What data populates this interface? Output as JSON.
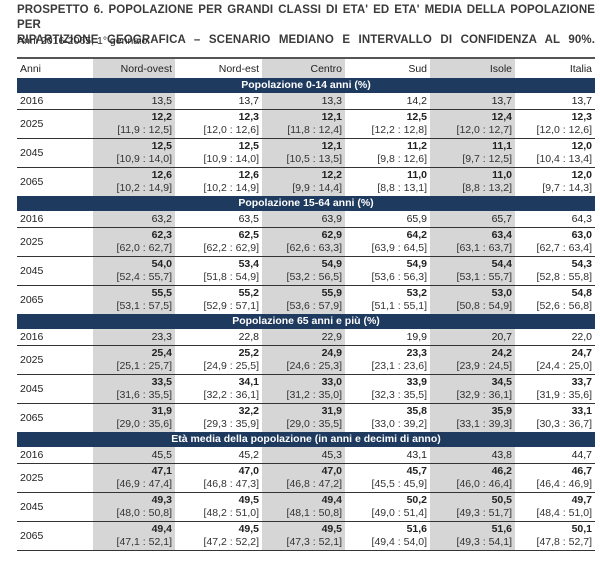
{
  "document": {
    "title_line1": "PROSPETTO 6. POPOLAZIONE PER GRANDI CLASSI DI ETA' ED ETA' MEDIA DELLA POPOLAZIONE PER",
    "title_line2": "RIPARTIZIONE GEOGRAFICA – SCENARIO MEDIANO E INTERVALLO DI CONFIDENZA AL 90%.",
    "subtitle": "Anni 2016-2065, 1° gennaio."
  },
  "table": {
    "headers": [
      "Anni",
      "Nord-ovest",
      "Nord-est",
      "Centro",
      "Sud",
      "Isole",
      "Italia"
    ],
    "sections": [
      {
        "title": "Popolazione 0-14 anni (%)",
        "rows": [
          {
            "year": "2016",
            "values": [
              "13,5",
              "13,7",
              "13,3",
              "14,2",
              "13,7",
              "13,7"
            ]
          },
          {
            "year": "2025",
            "values": [
              "12,2",
              "12,3",
              "12,1",
              "12,5",
              "12,4",
              "12,3"
            ],
            "ci": [
              "[11,9 : 12,5]",
              "[12,0 : 12,6]",
              "[11,8 : 12,4]",
              "[12,2 : 12,8]",
              "[12,0 : 12,7]",
              "[12,0 : 12,6]"
            ]
          },
          {
            "year": "2045",
            "values": [
              "12,5",
              "12,5",
              "12,1",
              "11,2",
              "11,1",
              "12,0"
            ],
            "ci": [
              "[10,9 : 14,0]",
              "[10,9 : 14,0]",
              "[10,5 : 13,5]",
              "[9,8 : 12,6]",
              "[9,7 : 12,5]",
              "[10,4 : 13,4]"
            ]
          },
          {
            "year": "2065",
            "values": [
              "12,6",
              "12,6",
              "12,2",
              "11,0",
              "11,0",
              "12,0"
            ],
            "ci": [
              "[10,2 : 14,9]",
              "[10,2 : 14,9]",
              "[9,9 : 14,4]",
              "[8,8 : 13,1]",
              "[8,8 : 13,2]",
              "[9,7 : 14,3]"
            ]
          }
        ]
      },
      {
        "title": "Popolazione 15-64 anni (%)",
        "rows": [
          {
            "year": "2016",
            "values": [
              "63,2",
              "63,5",
              "63,9",
              "65,9",
              "65,7",
              "64,3"
            ]
          },
          {
            "year": "2025",
            "values": [
              "62,3",
              "62,5",
              "62,9",
              "64,2",
              "63,4",
              "63,0"
            ],
            "ci": [
              "[62,0 : 62,7]",
              "[62,2 : 62,9]",
              "[62,6 : 63,3]",
              "[63,9 : 64,5]",
              "[63,1 : 63,7]",
              "[62,7 : 63,4]"
            ]
          },
          {
            "year": "2045",
            "values": [
              "54,0",
              "53,4",
              "54,9",
              "54,9",
              "54,4",
              "54,3"
            ],
            "ci": [
              "[52,4 : 55,7]",
              "[51,8 : 54,9]",
              "[53,2 : 56,5]",
              "[53,6 : 56,3]",
              "[53,1 : 55,7]",
              "[52,8 : 55,8]"
            ]
          },
          {
            "year": "2065",
            "values": [
              "55,5",
              "55,2",
              "55,9",
              "53,2",
              "53,0",
              "54,8"
            ],
            "ci": [
              "[53,1 : 57,5]",
              "[52,9 : 57,1]",
              "[53,6 : 57,9]",
              "[51,1 : 55,1]",
              "[50,8 : 54,9]",
              "[52,6 : 56,8]"
            ]
          }
        ]
      },
      {
        "title": "Popolazione 65 anni e più (%)",
        "rows": [
          {
            "year": "2016",
            "values": [
              "23,3",
              "22,8",
              "22,9",
              "19,9",
              "20,7",
              "22,0"
            ]
          },
          {
            "year": "2025",
            "values": [
              "25,4",
              "25,2",
              "24,9",
              "23,3",
              "24,2",
              "24,7"
            ],
            "ci": [
              "[25,1 : 25,7]",
              "[24,9 : 25,5]",
              "[24,6 : 25,3]",
              "[23,1 : 23,6]",
              "[23,9 : 24,5]",
              "[24,4 : 25,0]"
            ]
          },
          {
            "year": "2045",
            "values": [
              "33,5",
              "34,1",
              "33,0",
              "33,9",
              "34,5",
              "33,7"
            ],
            "ci": [
              "[31,6 : 35,5]",
              "[32,2 : 36,1]",
              "[31,2 : 35,0]",
              "[32,3 : 35,5]",
              "[32,9 : 36,1]",
              "[31,9 : 35,6]"
            ]
          },
          {
            "year": "2065",
            "values": [
              "31,9",
              "32,2",
              "31,9",
              "35,8",
              "35,9",
              "33,1"
            ],
            "ci": [
              "[29,0 : 35,6]",
              "[29,3 : 35,9]",
              "[29,0 : 35,5]",
              "[33,0 : 39,2]",
              "[33,1 : 39,3]",
              "[30,3 : 36,7]"
            ]
          }
        ]
      },
      {
        "title": "Età media della popolazione (in anni e decimi di anno)",
        "rows": [
          {
            "year": "2016",
            "values": [
              "45,5",
              "45,2",
              "45,3",
              "43,1",
              "43,8",
              "44,7"
            ]
          },
          {
            "year": "2025",
            "values": [
              "47,1",
              "47,0",
              "47,0",
              "45,7",
              "46,2",
              "46,7"
            ],
            "ci": [
              "[46,9 : 47,4]",
              "[46,8 : 47,3]",
              "[46,8 : 47,2]",
              "[45,5 : 45,9]",
              "[46,0 : 46,4]",
              "[46,4 : 46,9]"
            ]
          },
          {
            "year": "2045",
            "values": [
              "49,3",
              "49,5",
              "49,4",
              "50,2",
              "50,5",
              "49,7"
            ],
            "ci": [
              "[48,0 : 50,8]",
              "[48,2 : 51,0]",
              "[48,1 : 50,8]",
              "[49,0 : 51,4]",
              "[49,3 : 51,7]",
              "[48,4 : 51,0]"
            ]
          },
          {
            "year": "2065",
            "values": [
              "49,4",
              "49,5",
              "49,5",
              "51,6",
              "51,6",
              "50,1"
            ],
            "ci": [
              "[47,1 : 52,1]",
              "[47,2 : 52,2]",
              "[47,3 : 52,1]",
              "[49,4 : 54,0]",
              "[49,3 : 54,1]",
              "[47,8 : 52,7]"
            ]
          }
        ]
      }
    ]
  },
  "colors": {
    "section_header_bg": "#1f3a5f",
    "shaded_column_bg": "#d6d6d6"
  }
}
